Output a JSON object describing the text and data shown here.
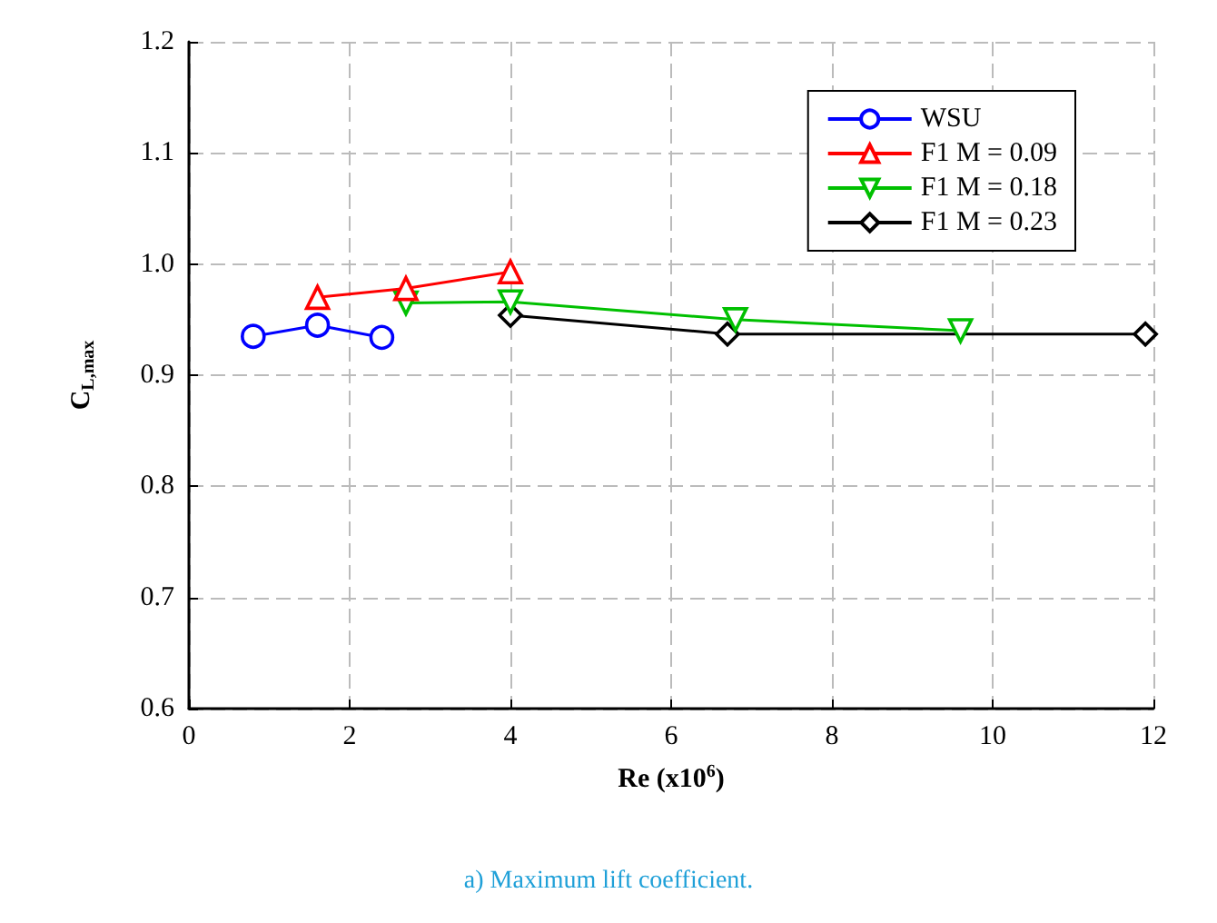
{
  "chart_data": {
    "type": "line",
    "xlabel": "Re (x10$^{6}$)",
    "ylabel": "C$_{L,max}$",
    "xlim": [
      0,
      12
    ],
    "xticks": [
      0,
      2,
      4,
      6,
      8,
      10,
      12
    ],
    "ylim": [
      0.6,
      1.2
    ],
    "yticks": [
      0.6,
      0.7,
      0.8,
      0.9,
      {
        "value": 1,
        "label": "1.0"
      },
      1.1,
      1.2
    ],
    "grid": true,
    "legend": "top right",
    "annotations": [
      "a) Maximum lift coefficient."
    ],
    "series": [
      {
        "name": "WSU",
        "color": "#0000ff",
        "marker": "circle",
        "x": [
          0.8,
          1.6,
          2.4
        ],
        "values": [
          0.935,
          0.945,
          0.934
        ]
      },
      {
        "name": "F1 M = 0.09",
        "color": "#ff0000",
        "marker": "triangle",
        "x": [
          1.6,
          2.7,
          4.0
        ],
        "values": [
          0.97,
          0.978,
          0.993
        ]
      },
      {
        "name": "F1 M = 0.18",
        "color": "#00c000",
        "marker": "triangle-down",
        "x": [
          2.7,
          4.0,
          6.8,
          9.6
        ],
        "values": [
          0.965,
          0.966,
          0.95,
          0.94
        ]
      },
      {
        "name": "F1 M = 0.23",
        "color": "#000000",
        "marker": "diamond",
        "x": [
          4.0,
          6.7,
          11.9
        ],
        "values": [
          0.954,
          0.937,
          0.937
        ]
      }
    ]
  }
}
